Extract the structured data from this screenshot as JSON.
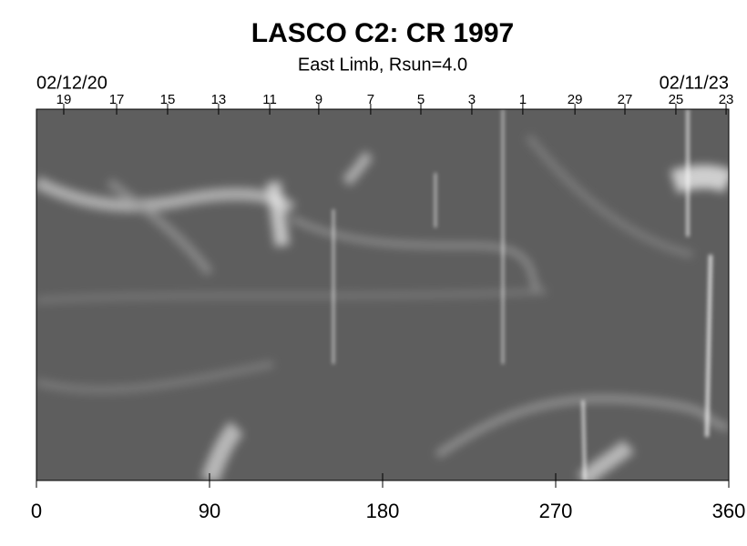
{
  "chart_data": {
    "type": "image",
    "title": "LASCO C2: CR 1997",
    "subtitle": "East Limb, Rsun=4.0",
    "start_date": "02/12/20",
    "end_date": "02/11/23",
    "xlim": [
      0,
      360
    ],
    "xticks": [
      0,
      90,
      180,
      270,
      360
    ],
    "x2ticks": [
      {
        "value": 14.2,
        "label": "19"
      },
      {
        "value": 41.7,
        "label": "17"
      },
      {
        "value": 68.2,
        "label": "15"
      },
      {
        "value": 94.7,
        "label": "13"
      },
      {
        "value": 121.3,
        "label": "11"
      },
      {
        "value": 146.8,
        "label": "9"
      },
      {
        "value": 173.8,
        "label": "7"
      },
      {
        "value": 199.9,
        "label": "5"
      },
      {
        "value": 226.4,
        "label": "3"
      },
      {
        "value": 252.9,
        "label": "1"
      },
      {
        "value": 280.0,
        "label": "29"
      },
      {
        "value": 306.0,
        "label": "27"
      },
      {
        "value": 332.5,
        "label": "25"
      },
      {
        "value": 358.6,
        "label": "23"
      }
    ]
  }
}
